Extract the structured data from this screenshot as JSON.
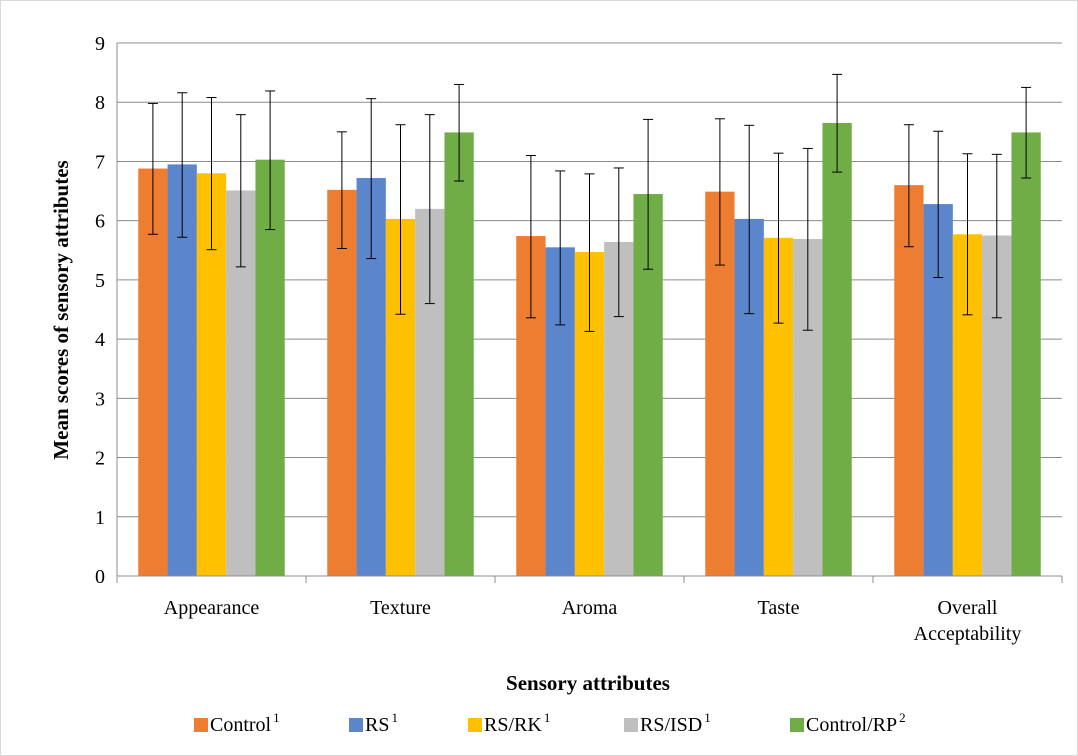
{
  "chart_data": {
    "type": "bar",
    "title": "",
    "xlabel": "Sensory attributes",
    "ylabel": "Mean scores of sensory attributes",
    "ylim": [
      0,
      9
    ],
    "yticks": [
      "0",
      "1",
      "2",
      "3",
      "4",
      "5",
      "6",
      "7",
      "8",
      "9"
    ],
    "grid": "horizontal",
    "legend_position": "bottom",
    "categories": [
      [
        "Appearance"
      ],
      [
        "Texture"
      ],
      [
        "Aroma"
      ],
      [
        "Taste"
      ],
      [
        "Overall",
        "Acceptability"
      ]
    ],
    "series": [
      {
        "name": "Control",
        "superscript": "1",
        "color": "#ED7D31",
        "values": [
          6.88,
          6.52,
          5.74,
          6.49,
          6.6
        ],
        "error_low": [
          5.77,
          5.53,
          4.36,
          5.25,
          5.56
        ],
        "error_high": [
          7.98,
          7.5,
          7.1,
          7.72,
          7.62
        ]
      },
      {
        "name": "RS",
        "superscript": "1",
        "color": "#5B86CB",
        "values": [
          6.95,
          6.72,
          5.55,
          6.03,
          6.28
        ],
        "error_low": [
          5.72,
          5.36,
          4.24,
          4.43,
          5.04
        ],
        "error_high": [
          8.16,
          8.06,
          6.84,
          7.61,
          7.51
        ]
      },
      {
        "name": "RS/RK",
        "superscript": "1",
        "color": "#FFC000",
        "values": [
          6.8,
          6.03,
          5.47,
          5.71,
          5.77
        ],
        "error_low": [
          5.51,
          4.42,
          4.13,
          4.27,
          4.41
        ],
        "error_high": [
          8.08,
          7.62,
          6.79,
          7.14,
          7.13
        ]
      },
      {
        "name": "RS/ISD",
        "superscript": "1",
        "color": "#BFBFBF",
        "values": [
          6.51,
          6.2,
          5.64,
          5.69,
          5.75
        ],
        "error_low": [
          5.22,
          4.6,
          4.38,
          4.15,
          4.36
        ],
        "error_high": [
          7.79,
          7.79,
          6.89,
          7.22,
          7.12
        ]
      },
      {
        "name": "Control/RP",
        "superscript": "2",
        "color": "#70AD47",
        "values": [
          7.03,
          7.49,
          6.45,
          7.65,
          7.49
        ],
        "error_low": [
          5.85,
          6.67,
          5.18,
          6.82,
          6.72
        ],
        "error_high": [
          8.19,
          8.3,
          7.71,
          8.47,
          8.25
        ]
      }
    ]
  }
}
